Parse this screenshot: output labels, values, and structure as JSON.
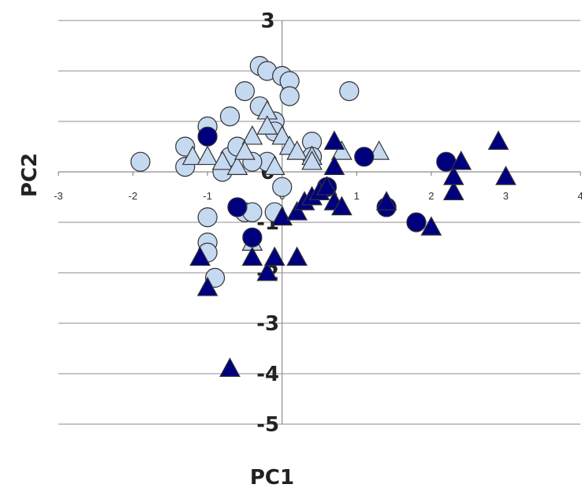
{
  "chart_data": {
    "type": "scatter",
    "title": "",
    "xlabel": "PC1",
    "ylabel": "PC2",
    "xlim": [
      -3,
      4
    ],
    "ylim": [
      -5,
      3
    ],
    "xticks": [
      -3,
      -2,
      -1,
      0,
      1,
      2,
      3,
      4
    ],
    "yticks": [
      3,
      2,
      1,
      0,
      -1,
      -2,
      -3,
      -4,
      -5
    ],
    "grid": true,
    "legend": "none",
    "colors": {
      "light": "#c5d9f1",
      "dark": "#00007f"
    },
    "series": [
      {
        "marker": "circle",
        "color": "light",
        "x": [
          -1.9,
          -1.3,
          -1.3,
          -1.0,
          -1.0,
          -0.7,
          -0.7,
          -0.6,
          -0.5,
          -0.5,
          -0.4,
          -0.3,
          -0.3,
          -0.2,
          -0.2,
          -0.1,
          0.0,
          0.0,
          0.1,
          0.1,
          0.4,
          0.4,
          0.9,
          -0.1,
          -0.9,
          -1.0,
          -1.0,
          -0.8,
          -0.4,
          -0.1
        ],
        "y": [
          0.2,
          0.5,
          0.1,
          0.9,
          -0.9,
          1.1,
          0.3,
          0.5,
          1.6,
          -0.8,
          -0.8,
          2.1,
          1.3,
          2.0,
          0.2,
          -0.8,
          1.9,
          -0.3,
          1.8,
          1.5,
          0.6,
          0.3,
          1.6,
          1.0,
          -2.1,
          -1.4,
          -1.6,
          0.0,
          0.2,
          0.8
        ]
      },
      {
        "marker": "triangle",
        "color": "light",
        "x": [
          -1.2,
          -1.0,
          -0.8,
          -0.6,
          -0.4,
          -0.4,
          -0.2,
          -0.1,
          0.0,
          0.1,
          0.2,
          0.4,
          0.8,
          1.3,
          -0.5,
          -0.2,
          0.4
        ],
        "y": [
          0.3,
          0.3,
          0.2,
          0.1,
          0.7,
          -1.4,
          1.2,
          0.1,
          0.7,
          0.5,
          0.4,
          0.3,
          0.4,
          0.4,
          0.4,
          0.9,
          0.2
        ]
      },
      {
        "marker": "circle",
        "color": "dark",
        "x": [
          -1.0,
          -0.6,
          -0.4,
          0.6,
          1.1,
          1.4,
          1.8,
          2.2
        ],
        "y": [
          0.7,
          -0.7,
          -1.3,
          -0.3,
          0.3,
          -0.7,
          -1.0,
          0.2
        ]
      },
      {
        "marker": "triangle",
        "color": "dark",
        "x": [
          -0.7,
          -1.0,
          -1.1,
          -0.4,
          -0.2,
          -0.1,
          0.0,
          0.2,
          0.2,
          0.3,
          0.4,
          0.5,
          0.6,
          0.7,
          0.7,
          0.8,
          1.4,
          2.0,
          2.3,
          2.3,
          2.4,
          2.9,
          3.0,
          0.7
        ],
        "y": [
          -3.9,
          -2.3,
          -1.7,
          -1.7,
          -2.0,
          -1.7,
          -0.9,
          -1.7,
          -0.8,
          -0.6,
          -0.5,
          -0.4,
          -0.3,
          -0.6,
          0.6,
          -0.7,
          -0.6,
          -1.1,
          -0.4,
          -0.1,
          0.2,
          0.6,
          -0.1,
          0.1
        ]
      }
    ]
  }
}
